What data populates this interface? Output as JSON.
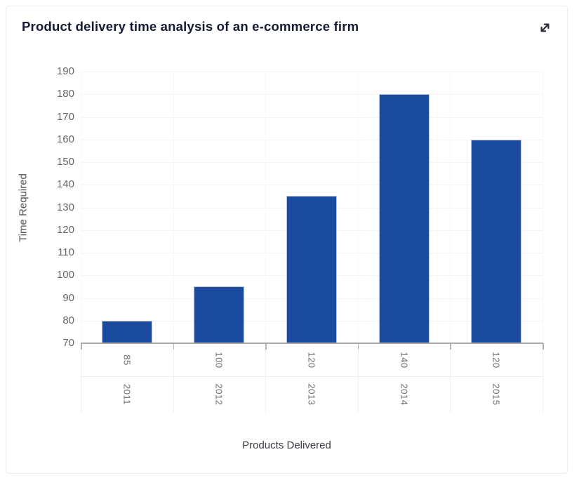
{
  "header": {
    "expand_icon": "expand-diagonal-arrows"
  },
  "chart_data": {
    "type": "bar",
    "title": "Product delivery time analysis of an e-commerce firm",
    "xlabel": "Products Delivered",
    "ylabel": "Time Required",
    "categories": [
      "2011",
      "2012",
      "2013",
      "2014",
      "2015"
    ],
    "x_axis_tier1_labels": [
      "85",
      "100",
      "120",
      "140",
      "120"
    ],
    "x_axis_tier2_labels": [
      "2011",
      "2012",
      "2013",
      "2014",
      "2015"
    ],
    "series": [
      {
        "name": "Time Required",
        "values": [
          80,
          95,
          135,
          180,
          160
        ]
      }
    ],
    "products_delivered": [
      85,
      100,
      120,
      140,
      120
    ],
    "ylim": [
      70,
      190
    ],
    "ytick_step": 10,
    "grid": true,
    "legend": "none",
    "colors": {
      "bar_fill": "#1b4b9e",
      "bar_border": "#b7c5e4",
      "axis_line": "#a9a9ac",
      "gridline": "#f5f5f7",
      "tick_label": "#65656d",
      "title": "#141a31"
    }
  }
}
